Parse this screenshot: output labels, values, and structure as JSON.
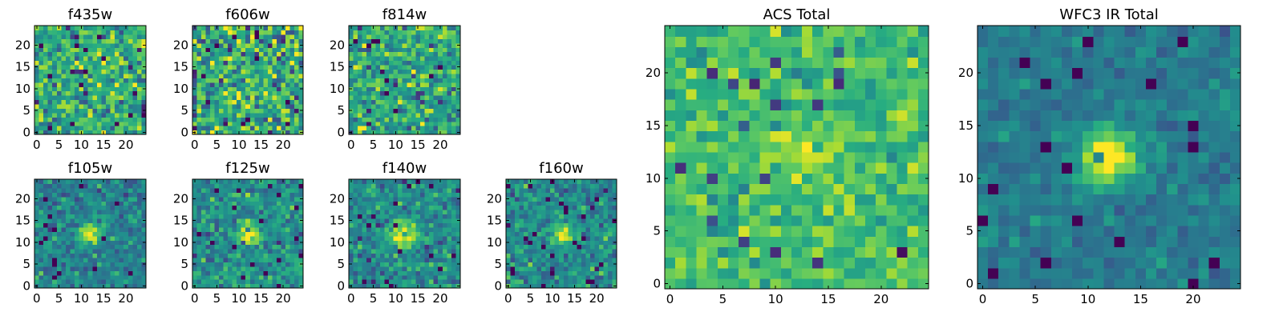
{
  "chart_data": [
    {
      "type": "heatmap",
      "title": "f435w",
      "grid_size": 25,
      "xticks": [
        0,
        5,
        10,
        15,
        20
      ],
      "yticks": [
        0,
        5,
        10,
        15,
        20
      ],
      "xlim": [
        -0.5,
        24.5
      ],
      "ylim": [
        -0.5,
        24.5
      ],
      "colormap": "viridis",
      "source_position": [
        12,
        12
      ],
      "source_strength": 0.0,
      "source_width": 2.0,
      "noise_level": 0.55,
      "mean_level": 0.62,
      "seed": 11
    },
    {
      "type": "heatmap",
      "title": "f606w",
      "grid_size": 25,
      "xticks": [
        0,
        5,
        10,
        15,
        20
      ],
      "yticks": [
        0,
        5,
        10,
        15,
        20
      ],
      "xlim": [
        -0.5,
        24.5
      ],
      "ylim": [
        -0.5,
        24.5
      ],
      "colormap": "viridis",
      "source_position": [
        12,
        12
      ],
      "source_strength": 0.0,
      "source_width": 2.0,
      "noise_level": 0.65,
      "mean_level": 0.62,
      "seed": 23
    },
    {
      "type": "heatmap",
      "title": "f814w",
      "grid_size": 25,
      "xticks": [
        0,
        5,
        10,
        15,
        20
      ],
      "yticks": [
        0,
        5,
        10,
        15,
        20
      ],
      "xlim": [
        -0.5,
        24.5
      ],
      "ylim": [
        -0.5,
        24.5
      ],
      "colormap": "viridis",
      "source_position": [
        13,
        12
      ],
      "source_strength": 0.12,
      "source_width": 2.0,
      "noise_level": 0.55,
      "mean_level": 0.6,
      "seed": 37
    },
    {
      "type": "heatmap",
      "title": "f105w",
      "grid_size": 25,
      "xticks": [
        0,
        5,
        10,
        15,
        20
      ],
      "yticks": [
        0,
        5,
        10,
        15,
        20
      ],
      "xlim": [
        -0.5,
        24.5
      ],
      "ylim": [
        -0.5,
        24.5
      ],
      "colormap": "viridis",
      "source_position": [
        12,
        12
      ],
      "source_strength": 0.55,
      "source_width": 1.6,
      "noise_level": 0.35,
      "mean_level": 0.45,
      "seed": 41
    },
    {
      "type": "heatmap",
      "title": "f125w",
      "grid_size": 25,
      "xticks": [
        0,
        5,
        10,
        15,
        20
      ],
      "yticks": [
        0,
        5,
        10,
        15,
        20
      ],
      "xlim": [
        -0.5,
        24.5
      ],
      "ylim": [
        -0.5,
        24.5
      ],
      "colormap": "viridis",
      "source_position": [
        12,
        12
      ],
      "source_strength": 0.5,
      "source_width": 1.8,
      "noise_level": 0.4,
      "mean_level": 0.5,
      "seed": 53
    },
    {
      "type": "heatmap",
      "title": "f140w",
      "grid_size": 25,
      "xticks": [
        0,
        5,
        10,
        15,
        20
      ],
      "yticks": [
        0,
        5,
        10,
        15,
        20
      ],
      "xlim": [
        -0.5,
        24.5
      ],
      "ylim": [
        -0.5,
        24.5
      ],
      "colormap": "viridis",
      "source_position": [
        12,
        12
      ],
      "source_strength": 0.5,
      "source_width": 2.0,
      "noise_level": 0.38,
      "mean_level": 0.5,
      "seed": 67
    },
    {
      "type": "heatmap",
      "title": "f160w",
      "grid_size": 25,
      "xticks": [
        0,
        5,
        10,
        15,
        20
      ],
      "yticks": [
        0,
        5,
        10,
        15,
        20
      ],
      "xlim": [
        -0.5,
        24.5
      ],
      "ylim": [
        -0.5,
        24.5
      ],
      "colormap": "viridis",
      "source_position": [
        12,
        12
      ],
      "source_strength": 0.55,
      "source_width": 1.6,
      "noise_level": 0.4,
      "mean_level": 0.48,
      "seed": 79
    },
    {
      "type": "heatmap",
      "title": "ACS Total",
      "grid_size": 25,
      "xticks": [
        0,
        5,
        10,
        15,
        20
      ],
      "yticks": [
        0,
        5,
        10,
        15,
        20
      ],
      "xlim": [
        -0.5,
        24.5
      ],
      "ylim": [
        -0.5,
        24.5
      ],
      "colormap": "viridis",
      "source_position": [
        13,
        12
      ],
      "source_strength": 0.15,
      "source_width": 2.2,
      "noise_level": 0.35,
      "mean_level": 0.7,
      "seed": 97
    },
    {
      "type": "heatmap",
      "title": "WFC3 IR Total",
      "grid_size": 25,
      "xticks": [
        0,
        5,
        10,
        15,
        20
      ],
      "yticks": [
        0,
        5,
        10,
        15,
        20
      ],
      "xlim": [
        -0.5,
        24.5
      ],
      "ylim": [
        -0.5,
        24.5
      ],
      "colormap": "viridis",
      "source_position": [
        12,
        12
      ],
      "source_strength": 0.75,
      "source_width": 1.7,
      "noise_level": 0.22,
      "mean_level": 0.42,
      "seed": 113
    }
  ]
}
